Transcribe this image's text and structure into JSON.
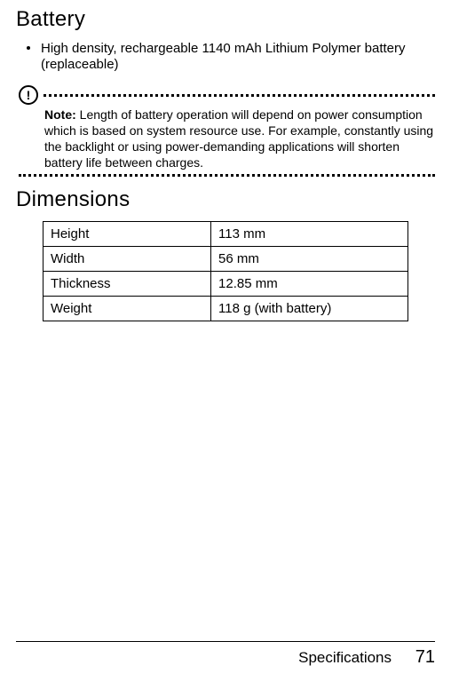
{
  "battery": {
    "heading": "Battery",
    "bullet": "High density, rechargeable 1140 mAh Lithium Polymer battery (replaceable)",
    "note_icon": "!",
    "note_label": "Note:",
    "note_text": " Length of battery operation will depend on power consumption which is based on system resource use. For example, constantly using the backlight or using power-demanding applications will shorten battery life between charges."
  },
  "dimensions": {
    "heading": "Dimensions",
    "rows": [
      {
        "label": "Height",
        "value": "113 mm"
      },
      {
        "label": "Width",
        "value": "56 mm"
      },
      {
        "label": "Thickness",
        "value": "12.85 mm"
      },
      {
        "label": "Weight",
        "value": "118 g (with battery)"
      }
    ]
  },
  "footer": {
    "section": "Specifications",
    "page": "71"
  },
  "colors": {
    "text": "#000000",
    "background": "#ffffff"
  }
}
